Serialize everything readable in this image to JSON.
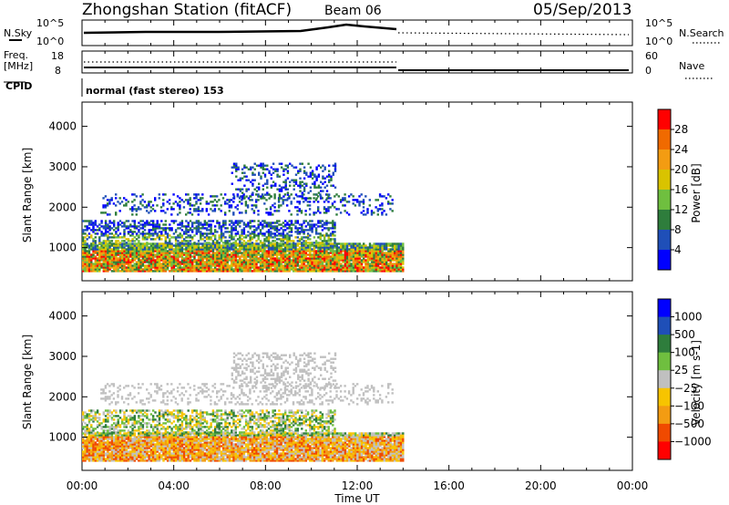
{
  "header": {
    "station": "Zhongshan Station (fitACF)",
    "beam": "Beam 06",
    "date": "05/Sep/2013"
  },
  "panels": {
    "nsky_label": "N.Sky",
    "nsky_ticks": [
      "10^5",
      "10^0"
    ],
    "nsearch_label": "N.Search",
    "nsearch_ticks": [
      "10^5",
      "10^0"
    ],
    "freq_label_1": "Freq.",
    "freq_label_2": "[MHz]",
    "freq_ticks": [
      "18",
      "8"
    ],
    "nave_label": "Nave",
    "nave_ticks": [
      "60",
      "0"
    ],
    "cpid_label": "CPID",
    "cpid_text": "normal (fast stereo) 153"
  },
  "colors": {
    "power_scale": [
      "#0000ff",
      "#1f4fb8",
      "#2e7d3c",
      "#6fbf3f",
      "#d9c300",
      "#f39c12",
      "#f06a00",
      "#ff0000"
    ],
    "velocity_scale": [
      "#ff0000",
      "#f04a00",
      "#f39c12",
      "#f7c400",
      "#c0c0c0",
      "#6fbf3f",
      "#2e7d3c",
      "#1f4fb8",
      "#0000ff"
    ]
  },
  "chart_data": [
    {
      "type": "heatmap",
      "name": "power",
      "xlabel": "Time UT",
      "ylabel": "Slant Range [km]",
      "x_ticks": [
        "00:00",
        "04:00",
        "08:00",
        "12:00",
        "16:00",
        "20:00",
        "00:00"
      ],
      "y_ticks": [
        1000,
        2000,
        3000,
        4000
      ],
      "colorbar_label": "Power [dB]",
      "colorbar_ticks": [
        4,
        8,
        12,
        16,
        20,
        24,
        28
      ],
      "data_extent_hours": [
        0,
        14
      ]
    },
    {
      "type": "heatmap",
      "name": "velocity",
      "xlabel": "Time UT",
      "ylabel": "Slant Range [km]",
      "x_ticks": [
        "00:00",
        "04:00",
        "08:00",
        "12:00",
        "16:00",
        "20:00",
        "00:00"
      ],
      "y_ticks": [
        1000,
        2000,
        3000,
        4000
      ],
      "colorbar_label": "Velocity [m s-1]",
      "colorbar_ticks": [
        1000,
        500,
        100,
        25,
        -25,
        -100,
        -500,
        -1000
      ],
      "data_extent_hours": [
        0,
        14
      ]
    }
  ]
}
